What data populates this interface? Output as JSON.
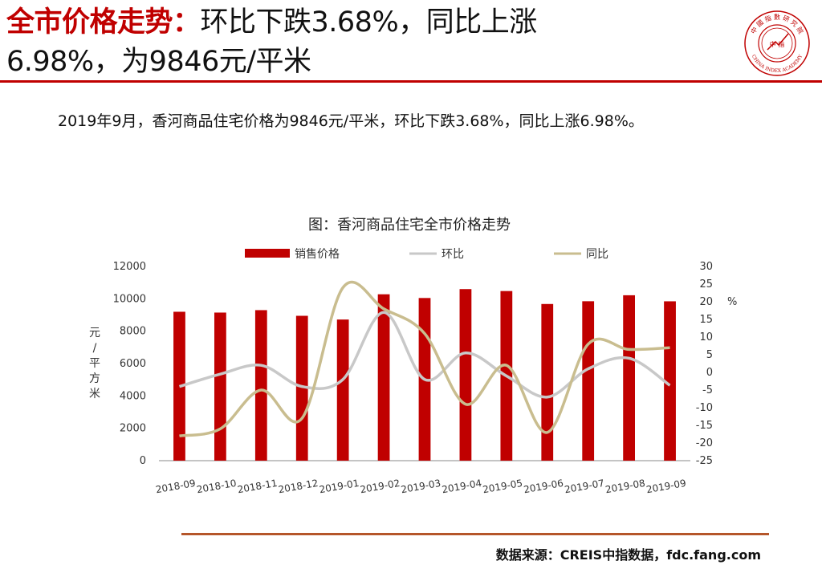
{
  "header": {
    "title_highlight": "全市价格走势：",
    "title_line1_rest": "环比下跌3.68%，同比上涨",
    "title_line2": "6.98%，为9846元/平米"
  },
  "logo": {
    "top_text": "中 國 指 數 研 究 院",
    "center_text": "中 指",
    "bottom_text": "CHINA INDEX ACADEMY",
    "color": "#c00000"
  },
  "summary": "2019年9月，香河商品住宅价格为9846元/平米，环比下跌3.68%，同比上涨6.98%。",
  "source": "数据来源：CREIS中指数据，fdc.fang.com",
  "chart_data": {
    "type": "bar+line",
    "title": "图：香河商品住宅全市价格走势",
    "categories": [
      "2018-09",
      "2018-10",
      "2018-11",
      "2018-12",
      "2019-01",
      "2019-02",
      "2019-03",
      "2019-04",
      "2019-05",
      "2019-06",
      "2019-07",
      "2019-08",
      "2019-09"
    ],
    "series": [
      {
        "name": "销售价格",
        "kind": "bar",
        "axis": "left",
        "color": "#c00000",
        "values": [
          9200,
          9150,
          9300,
          8950,
          8720,
          10280,
          10050,
          10600,
          10480,
          9680,
          9850,
          10220,
          9846
        ]
      },
      {
        "name": "环比",
        "kind": "line",
        "axis": "right",
        "color": "#c8c8c8",
        "values": [
          -4,
          -0.5,
          2,
          -4,
          -2,
          17,
          -2,
          5.5,
          -1,
          -7,
          1,
          4,
          -3.68
        ]
      },
      {
        "name": "同比",
        "kind": "line",
        "axis": "right",
        "color": "#c9bd8f",
        "values": [
          -18,
          -16,
          -5,
          -13,
          24,
          18,
          11,
          -9,
          2,
          -17,
          8,
          6.5,
          6.98
        ]
      }
    ],
    "y_left": {
      "label": "元/平方米",
      "label_chars": [
        "元",
        "/",
        "平",
        "方",
        "米"
      ],
      "min": 0,
      "max": 12000,
      "ticks": [
        0,
        2000,
        4000,
        6000,
        8000,
        10000,
        12000
      ]
    },
    "y_right": {
      "label": "%",
      "min": -25,
      "max": 30,
      "ticks": [
        -25,
        -20,
        -15,
        -10,
        -5,
        0,
        5,
        10,
        15,
        20,
        25,
        30
      ]
    },
    "legend_position": "top",
    "grid": false
  }
}
